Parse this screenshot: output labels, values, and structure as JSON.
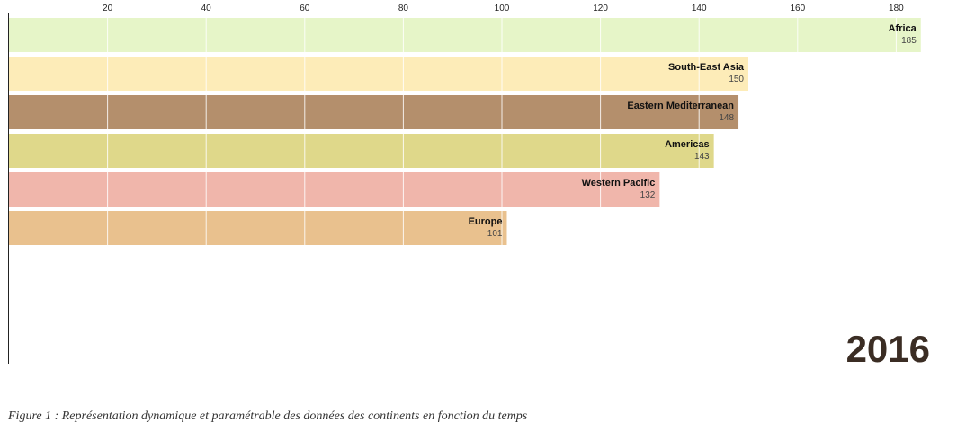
{
  "chart_data": {
    "type": "bar",
    "orientation": "horizontal",
    "categories": [
      "Africa",
      "South-East Asia",
      "Eastern Mediterranean",
      "Americas",
      "Western Pacific",
      "Europe"
    ],
    "values": [
      185,
      150,
      148,
      143,
      132,
      101
    ],
    "colors": [
      "#e6f5c8",
      "#fdecb8",
      "#b48f6c",
      "#dfd88a",
      "#f0b6ab",
      "#e9c18e"
    ],
    "xlim": [
      0,
      195
    ],
    "x_ticks": [
      20,
      40,
      60,
      80,
      100,
      120,
      140,
      160,
      180
    ],
    "grid": true,
    "year": "2016"
  },
  "caption": "Figure 1 : Représentation dynamique et paramétrable des données des continents en fonction du temps"
}
